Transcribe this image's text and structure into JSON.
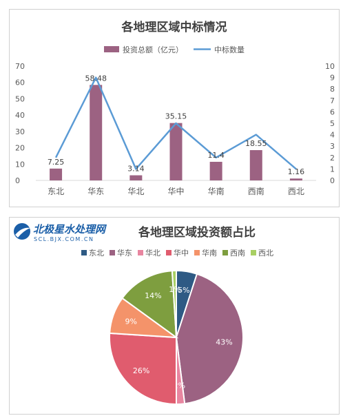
{
  "chart_data": [
    {
      "type": "bar+line",
      "title": "各地理区域中标情况",
      "categories": [
        "东北",
        "华东",
        "华北",
        "华中",
        "华南",
        "西南",
        "西北"
      ],
      "series": [
        {
          "name": "投资总额（亿元）",
          "kind": "bar",
          "axis": "left",
          "values": [
            7.25,
            58.48,
            3.14,
            35.15,
            11.4,
            18.55,
            1.16
          ],
          "data_labels": [
            "7.25",
            "58.48",
            "3.14",
            "35.15",
            "11.4",
            "18.55",
            "1.16"
          ]
        },
        {
          "name": "中标数量",
          "kind": "line",
          "axis": "right",
          "values": [
            2,
            9,
            1,
            5,
            2,
            4,
            1
          ]
        }
      ],
      "ylim_left": [
        0,
        70
      ],
      "yticks_left": [
        "0",
        "10",
        "20",
        "30",
        "40",
        "50",
        "60",
        "70"
      ],
      "ylim_right": [
        0,
        10
      ],
      "yticks_right": [
        "0",
        "1",
        "2",
        "3",
        "4",
        "5",
        "6",
        "7",
        "8",
        "9",
        "10"
      ],
      "legend_position": "top",
      "grid": false,
      "colors": {
        "bar": "#9c6282",
        "line": "#5b9bd5"
      }
    },
    {
      "type": "pie",
      "title": "各地理区域投资额占比",
      "legend_position": "top",
      "slices": [
        {
          "label": "东北",
          "value": 5,
          "pct_label": "5%",
          "color": "#2e5a84"
        },
        {
          "label": "华东",
          "value": 43,
          "pct_label": "43%",
          "color": "#9c6282"
        },
        {
          "label": "华北",
          "value": 2,
          "pct_label": "2%",
          "color": "#e886a0"
        },
        {
          "label": "华中",
          "value": 26,
          "pct_label": "26%",
          "color": "#e05c6e"
        },
        {
          "label": "华南",
          "value": 9,
          "pct_label": "9%",
          "color": "#f4936a"
        },
        {
          "label": "西南",
          "value": 14,
          "pct_label": "14%",
          "color": "#7e9e3f"
        },
        {
          "label": "西北",
          "value": 1,
          "pct_label": "1%",
          "color": "#a8cf63"
        }
      ]
    }
  ],
  "watermark": {
    "name": "北极星水处理网",
    "url": "SCL.BJX.COM.CN",
    "color": "#1b5fa8"
  }
}
